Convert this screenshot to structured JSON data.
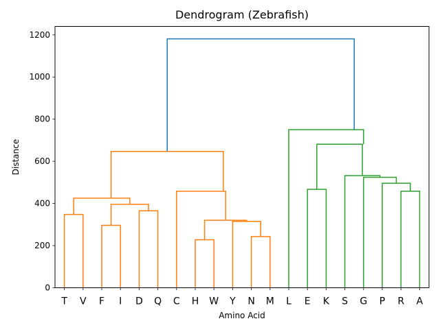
{
  "chart_data": {
    "type": "dendrogram",
    "title": "Dendrogram (Zebrafish)",
    "xlabel": "Amino Acid",
    "ylabel": "Distance",
    "ylim": [
      0,
      1240
    ],
    "yticks": [
      0,
      200,
      400,
      600,
      800,
      1000,
      1200
    ],
    "leaves": [
      "T",
      "V",
      "F",
      "I",
      "D",
      "Q",
      "C",
      "H",
      "W",
      "Y",
      "N",
      "M",
      "L",
      "E",
      "K",
      "S",
      "G",
      "P",
      "R",
      "A"
    ],
    "colors": {
      "orange": "#ff7f0e",
      "green": "#2ca02c",
      "blue": "#1f77b4"
    },
    "links": [
      {
        "left": "T",
        "right": "V",
        "left_height": 0,
        "right_height": 0,
        "height": 348,
        "color": "orange"
      },
      {
        "left": "F",
        "right": "I",
        "left_height": 0,
        "right_height": 0,
        "height": 296,
        "color": "orange"
      },
      {
        "left": "D",
        "right": "Q",
        "left_height": 0,
        "right_height": 0,
        "height": 365,
        "color": "orange"
      },
      {
        "left": "{F,I}",
        "right": "{D,Q}",
        "left_height": 296,
        "right_height": 365,
        "height": 396,
        "color": "orange"
      },
      {
        "left": "{T,V}",
        "right": "{F,I,D,Q}",
        "left_height": 348,
        "right_height": 396,
        "height": 425,
        "color": "orange"
      },
      {
        "left": "H",
        "right": "W",
        "left_height": 0,
        "right_height": 0,
        "height": 228,
        "color": "orange"
      },
      {
        "left": "N",
        "right": "M",
        "left_height": 0,
        "right_height": 0,
        "height": 243,
        "color": "orange"
      },
      {
        "left": "Y",
        "right": "{N,M}",
        "left_height": 0,
        "right_height": 243,
        "height": 315,
        "color": "orange"
      },
      {
        "left": "{H,W}",
        "right": "{Y,N,M}",
        "left_height": 228,
        "right_height": 315,
        "height": 320,
        "color": "orange"
      },
      {
        "left": "C",
        "right": "{H,W,Y,N,M}",
        "left_height": 0,
        "right_height": 320,
        "height": 458,
        "color": "orange"
      },
      {
        "left": "{T..Q}",
        "right": "{C..M}",
        "left_height": 425,
        "right_height": 458,
        "height": 647,
        "color": "orange"
      },
      {
        "left": "E",
        "right": "K",
        "left_height": 0,
        "right_height": 0,
        "height": 467,
        "color": "green"
      },
      {
        "left": "R",
        "right": "A",
        "left_height": 0,
        "right_height": 0,
        "height": 458,
        "color": "green"
      },
      {
        "left": "P",
        "right": "{R,A}",
        "left_height": 0,
        "right_height": 458,
        "height": 496,
        "color": "green"
      },
      {
        "left": "G",
        "right": "{P,R,A}",
        "left_height": 0,
        "right_height": 496,
        "height": 524,
        "color": "green"
      },
      {
        "left": "S",
        "right": "{G,P,R,A}",
        "left_height": 0,
        "right_height": 524,
        "height": 532,
        "color": "green"
      },
      {
        "left": "{E,K}",
        "right": "{S,G,P,R,A}",
        "left_height": 467,
        "right_height": 532,
        "height": 681,
        "color": "green"
      },
      {
        "left": "L",
        "right": "{E..A}",
        "left_height": 0,
        "right_height": 681,
        "height": 750,
        "color": "green"
      },
      {
        "left": "{T..M}",
        "right": "{L..A}",
        "left_height": 647,
        "right_height": 750,
        "height": 1181,
        "color": "blue"
      }
    ]
  }
}
